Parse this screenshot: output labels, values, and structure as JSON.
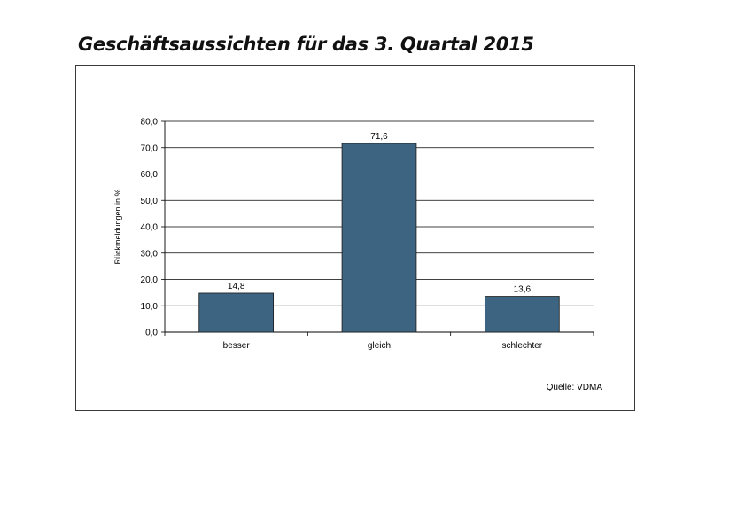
{
  "title": "Geschäftsaussichten für das 3. Quartal 2015",
  "source": "Quelle: VDMA",
  "colors": {
    "bar": "#3d6480",
    "bar_stroke": "#1a1a1a",
    "grid": "#000000"
  },
  "chart_data": {
    "type": "bar",
    "categories": [
      "besser",
      "gleich",
      "schlechter"
    ],
    "values": [
      14.8,
      71.6,
      13.6
    ],
    "value_labels": [
      "14,8",
      "71,6",
      "13,6"
    ],
    "title": "",
    "xlabel": "",
    "ylabel": "Rückmeldungen in %",
    "ylim": [
      0,
      80
    ],
    "yticks": [
      0,
      10,
      20,
      30,
      40,
      50,
      60,
      70,
      80
    ],
    "ytick_labels": [
      "0,0",
      "10,0",
      "20,0",
      "30,0",
      "40,0",
      "50,0",
      "60,0",
      "70,0",
      "80,0"
    ],
    "grid": true,
    "legend": "none"
  }
}
